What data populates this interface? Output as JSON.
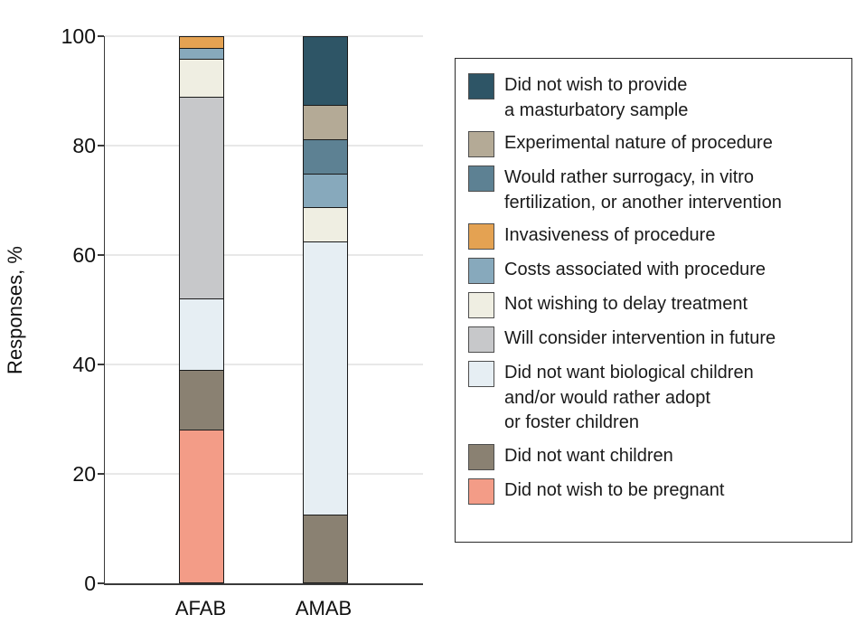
{
  "figure": {
    "background": "#ffffff",
    "axis_color": "#3a3a3a",
    "gridline_color": "#e8e8e8",
    "bar_border_color": "#1a1a1a"
  },
  "chart_data": {
    "type": "bar",
    "stacked": true,
    "title": "",
    "xlabel": "",
    "ylabel": "Responses, %",
    "ylim": [
      0,
      100
    ],
    "y_ticks": [
      0,
      20,
      40,
      60,
      80,
      100
    ],
    "grid": true,
    "legend_position": "right",
    "categories": [
      "AFAB",
      "AMAB"
    ],
    "series": [
      {
        "name": "Did not wish to provide a masturbatory sample",
        "legend_lines": [
          "Did not wish to provide",
          "a masturbatory sample"
        ],
        "color": "#2e5566",
        "values": [
          0,
          12.5
        ]
      },
      {
        "name": "Experimental nature of procedure",
        "legend_lines": [
          "Experimental nature of procedure"
        ],
        "color": "#b4aa96",
        "values": [
          0,
          6.25
        ]
      },
      {
        "name": "Would rather surrogacy, in vitro fertilization, or another intervention",
        "legend_lines": [
          "Would rather surrogacy, in vitro",
          "fertilization, or another intervention"
        ],
        "color": "#5d8193",
        "values": [
          0,
          6.25
        ]
      },
      {
        "name": "Invasiveness of procedure",
        "legend_lines": [
          "Invasiveness of procedure"
        ],
        "color": "#e4a252",
        "values": [
          2,
          0
        ]
      },
      {
        "name": "Costs associated with procedure",
        "legend_lines": [
          "Costs associated with procedure"
        ],
        "color": "#87a9bc",
        "values": [
          2,
          6.25
        ]
      },
      {
        "name": "Not wishing to delay treatment",
        "legend_lines": [
          "Not wishing to delay treatment"
        ],
        "color": "#efeee2",
        "values": [
          7,
          6.25
        ]
      },
      {
        "name": "Will consider intervention in future",
        "legend_lines": [
          "Will consider intervention in future"
        ],
        "color": "#c7c8ca",
        "values": [
          37,
          0
        ]
      },
      {
        "name": "Did not want biological children and/or would rather adopt or foster children",
        "legend_lines": [
          "Did not want biological children",
          "and/or would rather adopt",
          "or foster children"
        ],
        "color": "#e6eef3",
        "values": [
          13,
          50
        ]
      },
      {
        "name": "Did not want children",
        "legend_lines": [
          "Did not want children"
        ],
        "color": "#8a8172",
        "values": [
          11,
          12.5
        ]
      },
      {
        "name": "Did not wish to be pregnant",
        "legend_lines": [
          "Did not wish to be pregnant"
        ],
        "color": "#f39c87",
        "values": [
          28,
          0
        ]
      }
    ]
  }
}
